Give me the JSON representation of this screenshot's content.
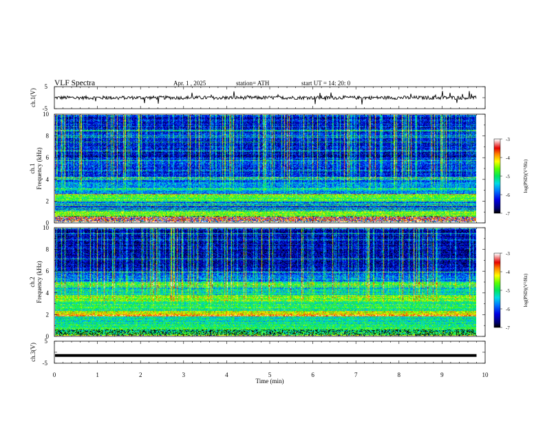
{
  "header": {
    "title": "VLF  Spectra",
    "date": "Apr. 1  , 2025",
    "station": "station= ATH",
    "start": "start  UT  =   14: 20: 0"
  },
  "chart_data": [
    {
      "id": "ch1-waveform",
      "type": "line",
      "ylabel": "ch.1(V)",
      "ylim": [
        -5,
        5
      ],
      "yticks": [
        "5",
        "-5"
      ],
      "xlim": [
        0,
        10
      ],
      "description_values": {
        "baseline": 0.0,
        "noise_amplitude": 0.8,
        "spike_amplitude": 2.5
      }
    },
    {
      "id": "ch1-spectrogram",
      "type": "heatmap",
      "ylabel": "Frequency (kHz)",
      "channel_label": "ch.1",
      "ylim": [
        0,
        10
      ],
      "yticks": [
        "0",
        "2",
        "4",
        "6",
        "8",
        "10"
      ],
      "xlim": [
        0,
        9.8
      ],
      "colorbar": {
        "label": "log(PSD)(V²/Hz)",
        "ticks": [
          "-3",
          "-4",
          "-5",
          "-6",
          "-7"
        ],
        "range": [
          -7,
          -3
        ]
      },
      "bands_khz": [
        {
          "from": 0,
          "to": 0.5,
          "level": -3.6
        },
        {
          "from": 0.5,
          "to": 1.0,
          "level": -4.6
        },
        {
          "from": 1.0,
          "to": 2.0,
          "level": -5.9
        },
        {
          "from": 2.0,
          "to": 2.6,
          "level": -4.7
        },
        {
          "from": 2.6,
          "to": 3.6,
          "level": -5.6
        },
        {
          "from": 3.6,
          "to": 4.2,
          "level": -5.9
        },
        {
          "from": 4.2,
          "to": 6.0,
          "level": -6.2
        },
        {
          "from": 6.0,
          "to": 8.0,
          "level": -6.4
        },
        {
          "from": 8.0,
          "to": 10.0,
          "level": -6.3
        }
      ]
    },
    {
      "id": "ch2-spectrogram",
      "type": "heatmap",
      "ylabel": "Frequency (kHz)",
      "channel_label": "ch.2",
      "ylim": [
        0,
        10
      ],
      "yticks": [
        "0",
        "2",
        "4",
        "6",
        "8",
        "10"
      ],
      "xlim": [
        0,
        9.8
      ],
      "colorbar": {
        "label": "log(PSD)(V²/Hz)",
        "ticks": [
          "-3",
          "-4",
          "-5",
          "-6",
          "-7"
        ],
        "range": [
          -7,
          -3
        ]
      },
      "bands_khz": [
        {
          "from": 0,
          "to": 1.0,
          "level": -5.0
        },
        {
          "from": 1.0,
          "to": 1.8,
          "level": -5.2
        },
        {
          "from": 1.8,
          "to": 2.3,
          "level": -4.2
        },
        {
          "from": 2.3,
          "to": 3.2,
          "level": -5.0
        },
        {
          "from": 3.2,
          "to": 3.8,
          "level": -4.6
        },
        {
          "from": 3.8,
          "to": 4.6,
          "level": -5.4
        },
        {
          "from": 4.6,
          "to": 5.0,
          "level": -4.9
        },
        {
          "from": 5.0,
          "to": 6.0,
          "level": -5.9
        },
        {
          "from": 6.0,
          "to": 10.0,
          "level": -6.5
        }
      ]
    },
    {
      "id": "ch3-waveform",
      "type": "line",
      "ylabel": "ch.3(V)",
      "ylim": [
        -5,
        5
      ],
      "yticks": [
        "5",
        "-5"
      ],
      "xlim": [
        0,
        10
      ],
      "description_values": {
        "baseline": -1.5
      }
    }
  ],
  "xaxis": {
    "label": "Time  (min)",
    "ticks": [
      "0",
      "1",
      "2",
      "3",
      "4",
      "5",
      "6",
      "7",
      "8",
      "9",
      "10"
    ],
    "xlim": [
      0,
      10
    ]
  }
}
